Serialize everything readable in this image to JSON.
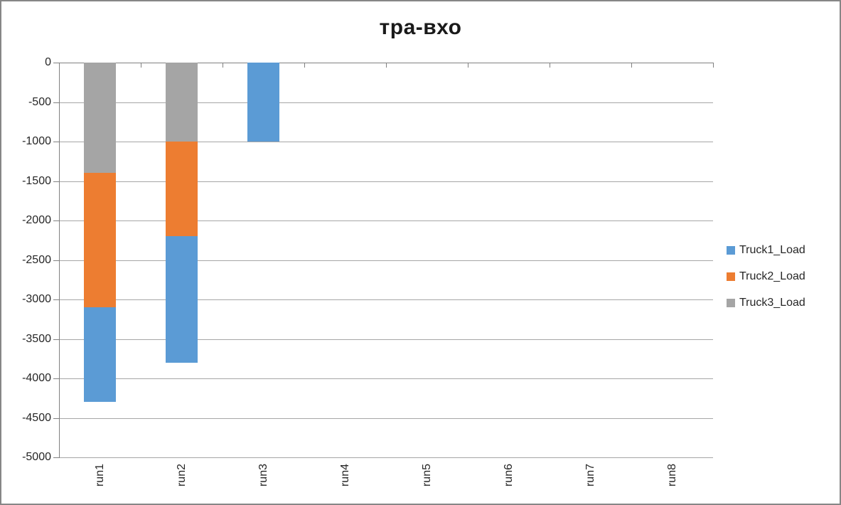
{
  "chart_data": {
    "type": "bar",
    "stacked": true,
    "orientation": "vertical",
    "title": "тра-вхо",
    "categories": [
      "run1",
      "run2",
      "run3",
      "run4",
      "run5",
      "run6",
      "run7",
      "run8"
    ],
    "series": [
      {
        "name": "Truck1_Load",
        "color": "#5B9BD5",
        "values": [
          -1200,
          -1600,
          -1000,
          0,
          0,
          0,
          0,
          0
        ]
      },
      {
        "name": "Truck2_Load",
        "color": "#ED7D31",
        "values": [
          -1700,
          -1200,
          0,
          0,
          0,
          0,
          0,
          0
        ]
      },
      {
        "name": "Truck3_Load",
        "color": "#A5A5A5",
        "values": [
          -1400,
          -1000,
          0,
          0,
          0,
          0,
          0,
          0
        ]
      }
    ],
    "stack_render_order_from_zero": [
      "Truck3_Load",
      "Truck2_Load",
      "Truck1_Load"
    ],
    "stack_totals": [
      -4300,
      -3800,
      -1000,
      0,
      0,
      0,
      0,
      0
    ],
    "ylim": [
      -5000,
      0
    ],
    "ytick_step": 500,
    "yticks": [
      0,
      -500,
      -1000,
      -1500,
      -2000,
      -2500,
      -3000,
      -3500,
      -4000,
      -4500,
      -5000
    ],
    "xlabel": "",
    "ylabel": "",
    "grid": true,
    "legend_position": "right",
    "x_label_rotation_deg": 90
  },
  "legend": {
    "items": [
      {
        "label": "Truck1_Load",
        "color": "#5B9BD5"
      },
      {
        "label": "Truck2_Load",
        "color": "#ED7D31"
      },
      {
        "label": "Truck3_Load",
        "color": "#A5A5A5"
      }
    ]
  },
  "colors": {
    "axis": "#808080",
    "gridline": "#A6A6A6",
    "tick_text": "#262626",
    "title_text": "#1A1A1A",
    "frame_border": "#868686",
    "background": "#FFFFFF"
  }
}
